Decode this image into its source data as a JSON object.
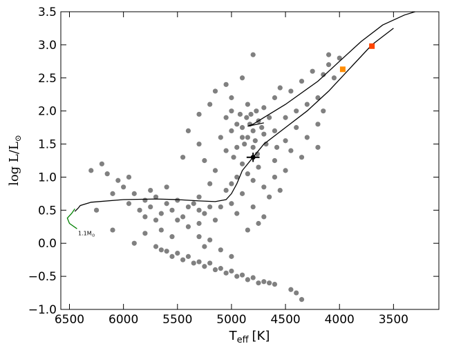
{
  "chart_data": {
    "type": "scatter",
    "xlim": [
      6580,
      3080
    ],
    "ylim": [
      -1.0,
      3.5
    ],
    "xticks": [
      6500,
      6000,
      5500,
      5000,
      4500,
      4000,
      3500
    ],
    "yticks": [
      {
        "value": -1.0,
        "label": "−1.0"
      },
      {
        "value": -0.5,
        "label": "−0.5"
      },
      {
        "value": 0,
        "label": "0.0"
      },
      {
        "value": 0.5,
        "label": "0.5"
      },
      {
        "value": 1.0,
        "label": "1.0"
      },
      {
        "value": 1.5,
        "label": "1.5"
      },
      {
        "value": 2.0,
        "label": "2.0"
      },
      {
        "value": 2.5,
        "label": "2.5"
      },
      {
        "value": 3.0,
        "label": "3.0"
      },
      {
        "value": 3.5,
        "label": "3.5"
      }
    ],
    "x_label": [
      "T",
      "eff",
      "[K]"
    ],
    "y_label": [
      "log L/L",
      "⊙"
    ],
    "annotations": [
      {
        "text": [
          "1.1M",
          "⊙"
        ],
        "x": 6420,
        "y": 0.12
      }
    ],
    "series": [
      {
        "type": "scatter",
        "marker": "circle",
        "color": "#808080",
        "x": [
          4850,
          4800,
          4780,
          4900,
          4750,
          4820,
          4880,
          4700,
          4950,
          4800,
          4720,
          4860,
          4770,
          4900,
          4680,
          4830,
          4950,
          5000,
          4650,
          4760,
          4920,
          4700,
          4850,
          5050,
          5000,
          4600,
          4580,
          5100,
          5050,
          4980,
          4500,
          4400,
          4300,
          4600,
          4450,
          4200,
          4350,
          4150,
          4100,
          4000,
          4250,
          4550,
          4400,
          4300,
          4200,
          4500,
          4150,
          4050,
          4350,
          4450,
          4200,
          4600,
          4500,
          4100,
          4800,
          4900,
          5050,
          5000,
          5200,
          5300,
          5150,
          5400,
          5300,
          5450,
          4900,
          4950,
          5000,
          4850,
          4800,
          4750,
          4700,
          4650,
          4900,
          5000,
          5050,
          5100,
          4950,
          4800,
          4700,
          4750,
          4850,
          5150,
          5200,
          5300,
          5250,
          4600,
          4550,
          6200,
          6150,
          6100,
          6050,
          6000,
          5950,
          5900,
          5850,
          5800,
          5750,
          5700,
          5650,
          5600,
          5550,
          5500,
          5450,
          5400,
          5350,
          5300,
          5250,
          5200,
          5150,
          5750,
          5600,
          5500,
          5400,
          5300,
          5700,
          5800,
          5650,
          5550,
          6250,
          6100,
          5900,
          5800,
          6300,
          5950,
          5700,
          5650,
          5600,
          5550,
          5500,
          5450,
          5400,
          5350,
          5300,
          5250,
          5200,
          5150,
          5100,
          5050,
          5000,
          4950,
          4900,
          4850,
          4800,
          4750,
          4700,
          4650,
          4600,
          4400,
          4450,
          4350,
          5000,
          5100,
          5200,
          5300,
          5250
        ],
        "y": [
          1.6,
          1.7,
          1.55,
          1.75,
          1.85,
          1.95,
          1.5,
          1.65,
          1.8,
          1.45,
          1.75,
          1.9,
          2.0,
          1.6,
          1.5,
          1.8,
          1.45,
          1.7,
          1.9,
          1.35,
          1.95,
          2.05,
          2.1,
          1.9,
          2.0,
          1.7,
          1.45,
          1.6,
          1.4,
          1.3,
          1.9,
          2.0,
          2.1,
          2.2,
          2.3,
          2.2,
          2.45,
          2.55,
          2.7,
          2.8,
          2.6,
          2.35,
          1.75,
          1.6,
          1.8,
          1.55,
          2.0,
          2.5,
          1.3,
          1.4,
          1.45,
          1.25,
          1.1,
          2.85,
          2.85,
          2.5,
          2.4,
          2.2,
          2.1,
          1.95,
          2.3,
          1.7,
          1.5,
          1.3,
          1.2,
          1.0,
          0.9,
          1.05,
          0.95,
          1.15,
          0.85,
          0.7,
          0.75,
          0.6,
          0.8,
          0.55,
          0.45,
          0.55,
          0.4,
          0.3,
          0.2,
          1.1,
          0.9,
          0.7,
          1.25,
          1.0,
          0.8,
          1.2,
          1.05,
          0.75,
          0.95,
          0.85,
          0.6,
          0.75,
          0.5,
          0.65,
          0.55,
          0.7,
          0.45,
          0.6,
          0.5,
          0.65,
          0.4,
          0.55,
          0.6,
          0.5,
          0.45,
          0.55,
          0.35,
          0.8,
          0.85,
          0.35,
          0.25,
          0.3,
          0.35,
          0.4,
          0.2,
          0.1,
          0.5,
          0.2,
          0.0,
          0.15,
          1.1,
          1.0,
          -0.05,
          -0.1,
          -0.12,
          -0.2,
          -0.15,
          -0.25,
          -0.2,
          -0.3,
          -0.28,
          -0.35,
          -0.3,
          -0.4,
          -0.38,
          -0.45,
          -0.42,
          -0.5,
          -0.48,
          -0.55,
          -0.52,
          -0.6,
          -0.58,
          -0.6,
          -0.62,
          -0.75,
          -0.7,
          -0.85,
          -0.2,
          -0.1,
          0.05,
          0.1,
          -0.05
        ]
      },
      {
        "type": "line",
        "color": "#000000",
        "x": [
          6450,
          6420,
          6400,
          6300,
          6000,
          5700,
          5500,
          5300,
          5150,
          5050,
          5000,
          4950,
          4900,
          4800,
          4700,
          4500,
          4300,
          4100,
          3900,
          3700,
          3500
        ],
        "y": [
          0.48,
          0.53,
          0.57,
          0.62,
          0.66,
          0.67,
          0.66,
          0.64,
          0.63,
          0.66,
          0.75,
          0.9,
          1.1,
          1.3,
          1.5,
          1.75,
          2.0,
          2.3,
          2.65,
          3.0,
          3.25
        ]
      },
      {
        "type": "line",
        "color": "#000000",
        "x": [
          4700,
          4850,
          4800,
          4700,
          4500,
          4200,
          4000,
          3800,
          3600,
          3400,
          3200
        ],
        "y": [
          1.82,
          1.77,
          1.8,
          1.9,
          2.1,
          2.45,
          2.75,
          3.05,
          3.3,
          3.45,
          3.55
        ]
      },
      {
        "type": "line",
        "color": "#008000",
        "x": [
          6450,
          6480,
          6520,
          6500,
          6430
        ],
        "y": [
          0.52,
          0.45,
          0.38,
          0.3,
          0.22
        ]
      },
      {
        "type": "scatter",
        "marker": "square",
        "color": "#ff8c00",
        "x": [
          3970
        ],
        "y": [
          2.63
        ]
      },
      {
        "type": "scatter",
        "marker": "square",
        "color": "#ff4500",
        "x": [
          3700
        ],
        "y": [
          2.98
        ]
      },
      {
        "type": "errorbar",
        "color": "#000000",
        "x": [
          4800
        ],
        "y": [
          1.3
        ],
        "xerr": [
          60
        ],
        "yerr": [
          0.07
        ]
      }
    ]
  }
}
